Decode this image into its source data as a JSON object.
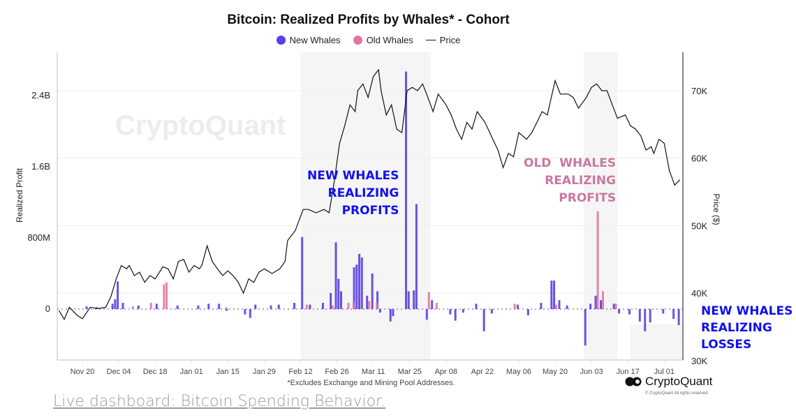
{
  "chart_data": {
    "type": "bar+line",
    "title": "Bitcoin: Realized Profits by Whales* - Cohort",
    "footnote": "*Excludes Exchange and Mining Pool Addresses.",
    "ylabel": "Realized Profit",
    "y2label": "Price ($)",
    "ylim": [
      -600000000,
      2800000000
    ],
    "y2lim": [
      30000,
      74000
    ],
    "yticks": [
      {
        "v": 2400000000,
        "label": "2.4B"
      },
      {
        "v": 1600000000,
        "label": "1.6B"
      },
      {
        "v": 800000000,
        "label": "800M"
      },
      {
        "v": 0,
        "label": "0"
      }
    ],
    "y2ticks": [
      {
        "v": 70000,
        "label": "70K"
      },
      {
        "v": 60000,
        "label": "60K"
      },
      {
        "v": 50000,
        "label": "50K"
      },
      {
        "v": 40000,
        "label": "40K"
      },
      {
        "v": 30000,
        "label": "30K"
      }
    ],
    "xticks": [
      {
        "d": "2023-11-20",
        "label": "Nov 20"
      },
      {
        "d": "2023-12-04",
        "label": "Dec 04"
      },
      {
        "d": "2023-12-18",
        "label": "Dec 18"
      },
      {
        "d": "2024-01-01",
        "label": "Jan 01"
      },
      {
        "d": "2024-01-15",
        "label": "Jan 15"
      },
      {
        "d": "2024-01-29",
        "label": "Jan 29"
      },
      {
        "d": "2024-02-12",
        "label": "Feb 12"
      },
      {
        "d": "2024-02-26",
        "label": "Feb 26"
      },
      {
        "d": "2024-03-11",
        "label": "Mar 11"
      },
      {
        "d": "2024-03-25",
        "label": "Mar 25"
      },
      {
        "d": "2024-04-08",
        "label": "Apr 08"
      },
      {
        "d": "2024-04-22",
        "label": "Apr 22"
      },
      {
        "d": "2024-05-06",
        "label": "May 06"
      },
      {
        "d": "2024-05-20",
        "label": "May 20"
      },
      {
        "d": "2024-06-03",
        "label": "Jun 03"
      },
      {
        "d": "2024-06-17",
        "label": "Jun 17"
      },
      {
        "d": "2024-07-01",
        "label": "Jul 01"
      }
    ],
    "xlim": [
      "2023-11-11",
      "2024-07-08"
    ],
    "grid": true,
    "legend_placement": "top-center",
    "legend": [
      {
        "name": "New Whales",
        "color": "#5a3fe6"
      },
      {
        "name": "Old Whales",
        "color": "#e2779f"
      },
      {
        "name": "Price",
        "color": "#111111"
      }
    ],
    "highlight_ranges": [
      [
        "2024-02-12",
        "2024-04-02"
      ],
      [
        "2024-05-31",
        "2024-06-13"
      ],
      [
        "2024-06-18",
        "2024-07-08"
      ]
    ],
    "annotations": [
      {
        "text": [
          "NEW WHALES",
          "REALIZING",
          "PROFITS"
        ],
        "color": "#1010f0"
      },
      {
        "text": [
          "OLD  WHALES",
          "REALIZING",
          "PROFITS"
        ],
        "color": "#c9789f"
      },
      {
        "text": [
          "NEW WHALES",
          "REALIZING",
          "LOSSES"
        ],
        "color": "#1010f0"
      }
    ],
    "series": [
      {
        "name": "New Whales",
        "type": "bar",
        "points": [
          [
            "2023-11-22",
            30000000.0
          ],
          [
            "2023-11-26",
            20000000.0
          ],
          [
            "2023-12-02",
            60000000.0
          ],
          [
            "2023-12-03",
            110000000.0
          ],
          [
            "2023-12-04",
            310000000.0
          ],
          [
            "2023-12-06",
            70000000.0
          ],
          [
            "2023-12-12",
            40000000.0
          ],
          [
            "2023-12-19",
            60000000.0
          ],
          [
            "2023-12-27",
            40000000.0
          ],
          [
            "2024-01-04",
            40000000.0
          ],
          [
            "2024-01-08",
            60000000.0
          ],
          [
            "2024-01-12",
            60000000.0
          ],
          [
            "2024-01-15",
            -20000000.0
          ],
          [
            "2024-01-22",
            -60000000.0
          ],
          [
            "2024-01-24",
            -100000000.0
          ],
          [
            "2024-01-26",
            50000000.0
          ],
          [
            "2024-02-01",
            40000000.0
          ],
          [
            "2024-02-04",
            50000000.0
          ],
          [
            "2024-02-10",
            70000000.0
          ],
          [
            "2024-02-13",
            810000000.0
          ],
          [
            "2024-02-16",
            50000000.0
          ],
          [
            "2024-02-21",
            70000000.0
          ],
          [
            "2024-02-24",
            180000000.0
          ],
          [
            "2024-02-26",
            750000000.0
          ],
          [
            "2024-02-27",
            340000000.0
          ],
          [
            "2024-02-28",
            200000000.0
          ],
          [
            "2024-03-04",
            470000000.0
          ],
          [
            "2024-03-05",
            500000000.0
          ],
          [
            "2024-03-06",
            620000000.0
          ],
          [
            "2024-03-07",
            580000000.0
          ],
          [
            "2024-03-09",
            150000000.0
          ],
          [
            "2024-03-11",
            400000000.0
          ],
          [
            "2024-03-13",
            200000000.0
          ],
          [
            "2024-03-14",
            -40000000.0
          ],
          [
            "2024-03-18",
            -140000000.0
          ],
          [
            "2024-03-19",
            -80000000.0
          ],
          [
            "2024-03-24",
            2670000000.0
          ],
          [
            "2024-03-25",
            200000000.0
          ],
          [
            "2024-03-27",
            210000000.0
          ],
          [
            "2024-03-28",
            1180000000.0
          ],
          [
            "2024-04-01",
            -120000000.0
          ],
          [
            "2024-04-03",
            100000000.0
          ],
          [
            "2024-04-10",
            -60000000.0
          ],
          [
            "2024-04-12",
            -130000000.0
          ],
          [
            "2024-04-15",
            -40000000.0
          ],
          [
            "2024-04-20",
            60000000.0
          ],
          [
            "2024-04-23",
            -250000000.0
          ],
          [
            "2024-04-26",
            -50000000.0
          ],
          [
            "2024-05-06",
            50000000.0
          ],
          [
            "2024-05-10",
            -70000000.0
          ],
          [
            "2024-05-15",
            70000000.0
          ],
          [
            "2024-05-19",
            320000000.0
          ],
          [
            "2024-05-20",
            320000000.0
          ],
          [
            "2024-05-22",
            100000000.0
          ],
          [
            "2024-05-25",
            40000000.0
          ],
          [
            "2024-06-01",
            -410000000.0
          ],
          [
            "2024-06-03",
            60000000.0
          ],
          [
            "2024-06-05",
            150000000.0
          ],
          [
            "2024-06-07",
            100000000.0
          ],
          [
            "2024-06-12",
            60000000.0
          ],
          [
            "2024-06-14",
            -50000000.0
          ],
          [
            "2024-06-18",
            -60000000.0
          ],
          [
            "2024-06-22",
            -140000000.0
          ],
          [
            "2024-06-24",
            -250000000.0
          ],
          [
            "2024-06-26",
            -150000000.0
          ],
          [
            "2024-07-01",
            -50000000.0
          ],
          [
            "2024-07-05",
            -110000000.0
          ],
          [
            "2024-07-07",
            -180000000.0
          ]
        ]
      },
      {
        "name": "Old Whales",
        "type": "bar",
        "points": [
          [
            "2023-12-09",
            30000000.0
          ],
          [
            "2023-12-16",
            70000000.0
          ],
          [
            "2023-12-21",
            280000000.0
          ],
          [
            "2023-12-22",
            300000000.0
          ],
          [
            "2024-01-14",
            20000000.0
          ],
          [
            "2024-02-14",
            50000000.0
          ],
          [
            "2024-02-24",
            40000000.0
          ],
          [
            "2024-03-01",
            70000000.0
          ],
          [
            "2024-03-03",
            80000000.0
          ],
          [
            "2024-03-09",
            90000000.0
          ],
          [
            "2024-03-12",
            70000000.0
          ],
          [
            "2024-04-01",
            190000000.0
          ],
          [
            "2024-04-04",
            70000000.0
          ],
          [
            "2024-05-04",
            60000000.0
          ],
          [
            "2024-05-20",
            50000000.0
          ],
          [
            "2024-06-05",
            1100000000.0
          ],
          [
            "2024-06-07",
            200000000.0
          ],
          [
            "2024-06-12",
            60000000.0
          ]
        ]
      },
      {
        "name": "Price",
        "type": "line",
        "axis": "right",
        "points": [
          [
            "2023-11-11",
            37400
          ],
          [
            "2023-11-13",
            36100
          ],
          [
            "2023-11-15",
            37900
          ],
          [
            "2023-11-18",
            36700
          ],
          [
            "2023-11-20",
            36200
          ],
          [
            "2023-11-23",
            37900
          ],
          [
            "2023-11-26",
            37700
          ],
          [
            "2023-11-29",
            37900
          ],
          [
            "2023-12-01",
            39500
          ],
          [
            "2023-12-03",
            42100
          ],
          [
            "2023-12-05",
            44100
          ],
          [
            "2023-12-07",
            43600
          ],
          [
            "2023-12-08",
            44100
          ],
          [
            "2023-12-10",
            42600
          ],
          [
            "2023-12-12",
            43100
          ],
          [
            "2023-12-14",
            41600
          ],
          [
            "2023-12-16",
            42600
          ],
          [
            "2023-12-18",
            42100
          ],
          [
            "2023-12-21",
            43900
          ],
          [
            "2023-12-23",
            43600
          ],
          [
            "2023-12-25",
            42100
          ],
          [
            "2023-12-27",
            44700
          ],
          [
            "2023-12-29",
            45000
          ],
          [
            "2023-12-31",
            43100
          ],
          [
            "2024-01-02",
            44100
          ],
          [
            "2024-01-04",
            43600
          ],
          [
            "2024-01-05",
            44100
          ],
          [
            "2024-01-07",
            47000
          ],
          [
            "2024-01-09",
            44700
          ],
          [
            "2024-01-11",
            43600
          ],
          [
            "2024-01-13",
            42600
          ],
          [
            "2024-01-15",
            43300
          ],
          [
            "2024-01-17",
            42600
          ],
          [
            "2024-01-19",
            41600
          ],
          [
            "2024-01-21",
            40000
          ],
          [
            "2024-01-23",
            42100
          ],
          [
            "2024-01-25",
            41600
          ],
          [
            "2024-01-27",
            43100
          ],
          [
            "2024-01-29",
            43600
          ],
          [
            "2024-02-01",
            42900
          ],
          [
            "2024-02-04",
            43600
          ],
          [
            "2024-02-06",
            44700
          ],
          [
            "2024-02-07",
            47800
          ],
          [
            "2024-02-10",
            49300
          ],
          [
            "2024-02-13",
            52400
          ],
          [
            "2024-02-15",
            52400
          ],
          [
            "2024-02-18",
            51900
          ],
          [
            "2024-02-21",
            52400
          ],
          [
            "2024-02-23",
            51900
          ],
          [
            "2024-02-25",
            56600
          ],
          [
            "2024-02-27",
            62200
          ],
          [
            "2024-02-29",
            64800
          ],
          [
            "2024-03-02",
            67900
          ],
          [
            "2024-03-04",
            66900
          ],
          [
            "2024-03-05",
            70000
          ],
          [
            "2024-03-07",
            71000
          ],
          [
            "2024-03-09",
            69000
          ],
          [
            "2024-03-11",
            72100
          ],
          [
            "2024-03-13",
            73100
          ],
          [
            "2024-03-14",
            70000
          ],
          [
            "2024-03-16",
            66400
          ],
          [
            "2024-03-18",
            67900
          ],
          [
            "2024-03-20",
            64300
          ],
          [
            "2024-03-22",
            63800
          ],
          [
            "2024-03-24",
            70000
          ],
          [
            "2024-03-26",
            70500
          ],
          [
            "2024-03-28",
            70000
          ],
          [
            "2024-03-30",
            71000
          ],
          [
            "2024-04-01",
            69000
          ],
          [
            "2024-04-03",
            66900
          ],
          [
            "2024-04-05",
            69500
          ],
          [
            "2024-04-08",
            67900
          ],
          [
            "2024-04-10",
            66400
          ],
          [
            "2024-04-12",
            64300
          ],
          [
            "2024-04-14",
            62800
          ],
          [
            "2024-04-16",
            65300
          ],
          [
            "2024-04-18",
            64300
          ],
          [
            "2024-04-20",
            66900
          ],
          [
            "2024-04-23",
            65300
          ],
          [
            "2024-04-26",
            62800
          ],
          [
            "2024-04-28",
            61200
          ],
          [
            "2024-04-30",
            58600
          ],
          [
            "2024-05-02",
            60700
          ],
          [
            "2024-05-04",
            60200
          ],
          [
            "2024-05-06",
            63800
          ],
          [
            "2024-05-09",
            62800
          ],
          [
            "2024-05-11",
            63800
          ],
          [
            "2024-05-13",
            65300
          ],
          [
            "2024-05-15",
            66900
          ],
          [
            "2024-05-17",
            66400
          ],
          [
            "2024-05-20",
            71500
          ],
          [
            "2024-05-22",
            69500
          ],
          [
            "2024-05-25",
            69500
          ],
          [
            "2024-05-27",
            69000
          ],
          [
            "2024-05-29",
            67400
          ],
          [
            "2024-06-01",
            69000
          ],
          [
            "2024-06-03",
            70500
          ],
          [
            "2024-06-05",
            71000
          ],
          [
            "2024-06-07",
            70000
          ],
          [
            "2024-06-09",
            70000
          ],
          [
            "2024-06-11",
            67900
          ],
          [
            "2024-06-13",
            65900
          ],
          [
            "2024-06-16",
            66400
          ],
          [
            "2024-06-18",
            64800
          ],
          [
            "2024-06-20",
            64300
          ],
          [
            "2024-06-22",
            63300
          ],
          [
            "2024-06-24",
            61200
          ],
          [
            "2024-06-26",
            61700
          ],
          [
            "2024-06-27",
            60700
          ],
          [
            "2024-06-29",
            62800
          ],
          [
            "2024-07-01",
            62200
          ],
          [
            "2024-07-03",
            58100
          ],
          [
            "2024-07-04",
            57100
          ],
          [
            "2024-07-05",
            56000
          ],
          [
            "2024-07-07",
            56800
          ]
        ]
      }
    ]
  },
  "watermark": "CryptoQuant",
  "brand": {
    "name": "CryptoQuant",
    "copyright": "© CryptoQuant All rights reserved."
  },
  "link": {
    "text": "Live dashboard: Bitcoin Spending Behavior."
  }
}
